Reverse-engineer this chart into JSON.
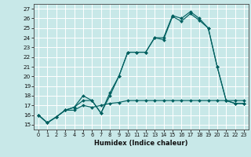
{
  "title": "",
  "xlabel": "Humidex (Indice chaleur)",
  "bg_color": "#c8e8e8",
  "line_color": "#006060",
  "grid_color": "#ffffff",
  "ylim": [
    14.5,
    27.5
  ],
  "xlim": [
    -0.5,
    23.5
  ],
  "yticks": [
    15,
    16,
    17,
    18,
    19,
    20,
    21,
    22,
    23,
    24,
    25,
    26,
    27
  ],
  "xticks": [
    0,
    1,
    2,
    3,
    4,
    5,
    6,
    7,
    8,
    9,
    10,
    11,
    12,
    13,
    14,
    15,
    16,
    17,
    18,
    19,
    20,
    21,
    22,
    23
  ],
  "line1_x": [
    0,
    1,
    2,
    3,
    4,
    5,
    6,
    7,
    8,
    9,
    10,
    11,
    12,
    13,
    14,
    15,
    16,
    17,
    18,
    19,
    20,
    21,
    22,
    23
  ],
  "line1_y": [
    16.0,
    15.2,
    15.8,
    16.5,
    16.8,
    17.5,
    17.5,
    16.2,
    18.3,
    20.0,
    22.5,
    22.5,
    22.5,
    24.0,
    24.0,
    26.3,
    26.0,
    26.7,
    26.0,
    25.0,
    21.0,
    17.5,
    17.2,
    17.2
  ],
  "line2_x": [
    0,
    1,
    2,
    3,
    4,
    5,
    6,
    7,
    8,
    9,
    10,
    11,
    12,
    13,
    14,
    15,
    16,
    17,
    18,
    19,
    20,
    21,
    22,
    23
  ],
  "line2_y": [
    16.0,
    15.2,
    15.8,
    16.5,
    16.8,
    18.0,
    17.5,
    16.2,
    18.0,
    20.0,
    22.5,
    22.5,
    22.5,
    24.0,
    23.8,
    26.2,
    25.7,
    26.5,
    25.8,
    25.0,
    21.0,
    17.5,
    17.2,
    17.2
  ],
  "line3_x": [
    0,
    1,
    2,
    3,
    4,
    5,
    6,
    7,
    8,
    9,
    10,
    11,
    12,
    13,
    14,
    15,
    16,
    17,
    18,
    19,
    20,
    21,
    22,
    23
  ],
  "line3_y": [
    16.0,
    15.2,
    15.8,
    16.5,
    16.5,
    17.0,
    16.8,
    17.0,
    17.2,
    17.3,
    17.5,
    17.5,
    17.5,
    17.5,
    17.5,
    17.5,
    17.5,
    17.5,
    17.5,
    17.5,
    17.5,
    17.5,
    17.5,
    17.5
  ]
}
